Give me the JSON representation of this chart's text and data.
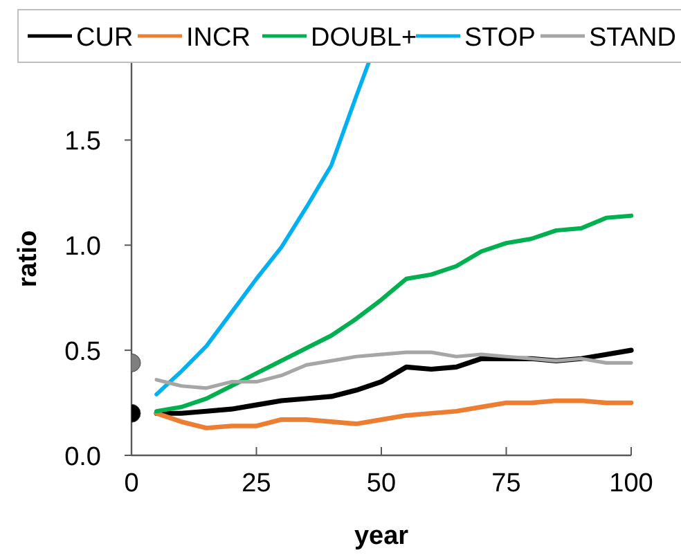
{
  "chart_data": {
    "type": "line",
    "xlabel": "year",
    "ylabel": "ratio",
    "x": [
      5,
      10,
      15,
      20,
      25,
      30,
      35,
      40,
      45,
      50,
      55,
      60,
      65,
      70,
      75,
      80,
      85,
      90,
      95,
      100
    ],
    "xlim": [
      0,
      100
    ],
    "xticks": [
      0,
      25,
      50,
      75,
      100
    ],
    "ylim": [
      0,
      1.87
    ],
    "yticks": [
      {
        "value": 0,
        "label": "0.0"
      },
      {
        "value": 0.5,
        "label": "0.5"
      },
      {
        "value": 1,
        "label": "1.0"
      },
      {
        "value": 1.5,
        "label": "1.5"
      }
    ],
    "grid": false,
    "legend": "top",
    "line_style": "solid",
    "series": [
      {
        "name": "CUR",
        "color": "#000000",
        "values": [
          0.2,
          0.2,
          0.21,
          0.22,
          0.24,
          0.26,
          0.27,
          0.28,
          0.31,
          0.35,
          0.42,
          0.41,
          0.42,
          0.46,
          0.46,
          0.46,
          0.45,
          0.46,
          0.48,
          0.5
        ]
      },
      {
        "name": "INCR",
        "color": "#ed7d31",
        "values": [
          0.2,
          0.16,
          0.13,
          0.14,
          0.14,
          0.17,
          0.17,
          0.16,
          0.15,
          0.17,
          0.19,
          0.2,
          0.21,
          0.23,
          0.25,
          0.25,
          0.26,
          0.26,
          0.25,
          0.25
        ]
      },
      {
        "name": "DOUBL+",
        "color": "#00b050",
        "values": [
          0.21,
          0.23,
          0.27,
          0.33,
          0.39,
          0.45,
          0.51,
          0.57,
          0.65,
          0.74,
          0.84,
          0.86,
          0.9,
          0.97,
          1.01,
          1.03,
          1.07,
          1.08,
          1.13,
          1.14
        ]
      },
      {
        "name": "STOP",
        "color": "#00b0f0",
        "x": [
          5,
          10,
          15,
          20,
          25,
          30,
          35,
          40,
          45,
          47.5
        ],
        "values": [
          0.29,
          0.4,
          0.52,
          0.68,
          0.84,
          0.99,
          1.18,
          1.38,
          1.71,
          1.87
        ]
      },
      {
        "name": "STAND",
        "color": "#a6a6a6",
        "values": [
          0.36,
          0.33,
          0.32,
          0.35,
          0.35,
          0.38,
          0.43,
          0.45,
          0.47,
          0.48,
          0.49,
          0.49,
          0.47,
          0.48,
          0.47,
          0.46,
          0.45,
          0.46,
          0.44,
          0.44
        ]
      },
      {
        "type": "scatter",
        "marker": "circle",
        "color": "#000000",
        "x": [
          0
        ],
        "values": [
          0.2
        ]
      },
      {
        "type": "scatter",
        "marker": "circle",
        "color": "#7f7f7f",
        "x": [
          0
        ],
        "values": [
          0.44
        ]
      }
    ]
  }
}
